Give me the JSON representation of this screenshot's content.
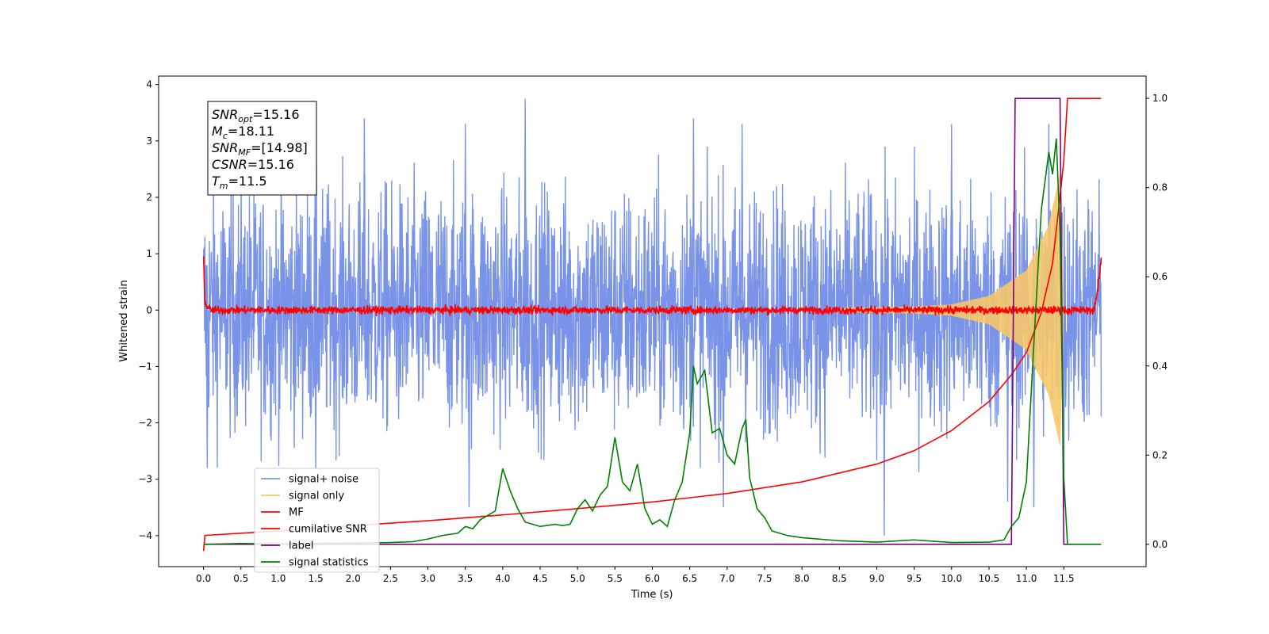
{
  "chart_data": {
    "type": "line",
    "xlabel": "Time (s)",
    "ylabel": "Whitened strain",
    "ylabel_right": "",
    "xlim": [
      -0.6,
      12.6
    ],
    "ylim": [
      -4.55,
      4.15
    ],
    "ylim_right": [
      -0.05,
      1.05
    ],
    "xticks": [
      0.0,
      0.5,
      1.0,
      1.5,
      2.0,
      2.5,
      3.0,
      3.5,
      4.0,
      4.5,
      5.0,
      5.5,
      6.0,
      6.5,
      7.0,
      7.5,
      8.0,
      8.5,
      9.0,
      9.5,
      10.0,
      10.5,
      11.0,
      11.5
    ],
    "xtick_labels": [
      "0.0",
      "0.5",
      "1.0",
      "1.5",
      "2.0",
      "2.5",
      "3.0",
      "3.5",
      "4.0",
      "4.5",
      "5.0",
      "5.5",
      "6.0",
      "6.5",
      "7.0",
      "7.5",
      "8.0",
      "8.5",
      "9.0",
      "9.5",
      "10.0",
      "10.5",
      "11.0",
      "11.5"
    ],
    "yticks": [
      -4,
      -3,
      -2,
      -1,
      0,
      1,
      2,
      3,
      4
    ],
    "ytick_labels": [
      "−4",
      "−3",
      "−2",
      "−1",
      "0",
      "1",
      "2",
      "3",
      "4"
    ],
    "yticks_right": [
      0.0,
      0.2,
      0.4,
      0.6,
      0.8,
      1.0
    ],
    "ytick_labels_right": [
      "0.0",
      "0.2",
      "0.4",
      "0.6",
      "0.8",
      "1.0"
    ],
    "grid": false,
    "legend_position": "lower-left",
    "annotation": {
      "lines": [
        {
          "main": "SNR",
          "sub": "opt",
          "rest": "=15.16"
        },
        {
          "main": "M",
          "sub": "c",
          "rest": "=18.11"
        },
        {
          "main": "SNR",
          "sub": "MF",
          "rest": "=[14.98]"
        },
        {
          "main": "CSNR",
          "sub": "",
          "rest": "=15.16"
        },
        {
          "main": "T",
          "sub": "m",
          "rest": "=11.5"
        }
      ]
    },
    "series": [
      {
        "name": "signal+ noise",
        "color": "#7893e8",
        "axis": "left",
        "kind": "noise-band",
        "x_range": [
          0.0,
          12.0
        ],
        "typical_min": -2.2,
        "typical_max": 2.2,
        "extremes": [
          {
            "x": 0.05,
            "y": -2.8
          },
          {
            "x": 1.5,
            "y": -2.8
          },
          {
            "x": 2.15,
            "y": 3.4
          },
          {
            "x": 3.5,
            "y": 3.3
          },
          {
            "x": 3.55,
            "y": -3.5
          },
          {
            "x": 4.3,
            "y": 3.75
          },
          {
            "x": 6.55,
            "y": 3.4
          },
          {
            "x": 6.95,
            "y": -3.5
          },
          {
            "x": 7.2,
            "y": 3.3
          },
          {
            "x": 9.1,
            "y": -4.0
          },
          {
            "x": 10.0,
            "y": 3.3
          },
          {
            "x": 10.75,
            "y": -3.4
          },
          {
            "x": 11.1,
            "y": -3.5
          },
          {
            "x": 11.3,
            "y": 3.3
          },
          {
            "x": 11.5,
            "y": -3.5
          }
        ]
      },
      {
        "name": "signal only",
        "color": "#f5c86a",
        "axis": "left",
        "kind": "chirp",
        "amplitude_points": [
          [
            0.0,
            0.0
          ],
          [
            8.0,
            0.03
          ],
          [
            9.5,
            0.06
          ],
          [
            10.0,
            0.1
          ],
          [
            10.5,
            0.25
          ],
          [
            11.0,
            0.7
          ],
          [
            11.3,
            1.5
          ],
          [
            11.45,
            2.4
          ],
          [
            11.5,
            0.0
          ],
          [
            12.0,
            0.0
          ]
        ]
      },
      {
        "name": "MF",
        "color": "#ff0000",
        "axis": "left",
        "kind": "noise-band",
        "points": [
          [
            0.0,
            1.0
          ],
          [
            0.02,
            0.1
          ],
          [
            0.1,
            0.0
          ],
          [
            6.0,
            0.0
          ],
          [
            11.9,
            0.0
          ],
          [
            11.95,
            0.3
          ],
          [
            12.0,
            0.9
          ]
        ],
        "jitter": 0.1
      },
      {
        "name": "cumilative SNR",
        "color": "#ff0000",
        "axis": "right",
        "points": [
          [
            0.0,
            -0.015
          ],
          [
            0.02,
            0.02
          ],
          [
            1.0,
            0.03
          ],
          [
            2.0,
            0.042
          ],
          [
            3.0,
            0.053
          ],
          [
            4.0,
            0.066
          ],
          [
            5.0,
            0.08
          ],
          [
            6.0,
            0.095
          ],
          [
            7.0,
            0.114
          ],
          [
            8.0,
            0.14
          ],
          [
            9.0,
            0.18
          ],
          [
            9.5,
            0.21
          ],
          [
            10.0,
            0.255
          ],
          [
            10.5,
            0.32
          ],
          [
            10.8,
            0.38
          ],
          [
            11.0,
            0.43
          ],
          [
            11.2,
            0.52
          ],
          [
            11.35,
            0.63
          ],
          [
            11.45,
            0.78
          ],
          [
            11.5,
            0.86
          ],
          [
            11.55,
            1.0
          ],
          [
            12.0,
            1.0
          ]
        ]
      },
      {
        "name": "label",
        "color": "#800080",
        "axis": "right",
        "points": [
          [
            0.0,
            0.0
          ],
          [
            10.8,
            0.0
          ],
          [
            10.85,
            1.0
          ],
          [
            11.45,
            1.0
          ],
          [
            11.5,
            0.0
          ],
          [
            11.6,
            0.0
          ]
        ]
      },
      {
        "name": "signal statistics",
        "color": "#008000",
        "axis": "right",
        "points": [
          [
            0.0,
            0.0
          ],
          [
            0.5,
            0.002
          ],
          [
            1.0,
            0.001
          ],
          [
            1.5,
            0.002
          ],
          [
            2.0,
            0.003
          ],
          [
            2.5,
            0.004
          ],
          [
            2.8,
            0.006
          ],
          [
            3.0,
            0.012
          ],
          [
            3.2,
            0.02
          ],
          [
            3.4,
            0.025
          ],
          [
            3.5,
            0.04
          ],
          [
            3.6,
            0.035
          ],
          [
            3.7,
            0.055
          ],
          [
            3.8,
            0.065
          ],
          [
            3.9,
            0.075
          ],
          [
            4.0,
            0.17
          ],
          [
            4.1,
            0.12
          ],
          [
            4.2,
            0.08
          ],
          [
            4.3,
            0.05
          ],
          [
            4.4,
            0.045
          ],
          [
            4.5,
            0.04
          ],
          [
            4.7,
            0.045
          ],
          [
            4.8,
            0.042
          ],
          [
            4.9,
            0.045
          ],
          [
            5.0,
            0.08
          ],
          [
            5.1,
            0.1
          ],
          [
            5.2,
            0.075
          ],
          [
            5.3,
            0.11
          ],
          [
            5.4,
            0.13
          ],
          [
            5.5,
            0.24
          ],
          [
            5.6,
            0.14
          ],
          [
            5.7,
            0.12
          ],
          [
            5.8,
            0.18
          ],
          [
            5.9,
            0.08
          ],
          [
            6.0,
            0.045
          ],
          [
            6.1,
            0.055
          ],
          [
            6.2,
            0.04
          ],
          [
            6.3,
            0.1
          ],
          [
            6.4,
            0.14
          ],
          [
            6.5,
            0.25
          ],
          [
            6.55,
            0.4
          ],
          [
            6.6,
            0.36
          ],
          [
            6.7,
            0.39
          ],
          [
            6.8,
            0.25
          ],
          [
            6.9,
            0.26
          ],
          [
            7.0,
            0.2
          ],
          [
            7.1,
            0.18
          ],
          [
            7.2,
            0.26
          ],
          [
            7.25,
            0.28
          ],
          [
            7.3,
            0.15
          ],
          [
            7.4,
            0.08
          ],
          [
            7.5,
            0.06
          ],
          [
            7.6,
            0.03
          ],
          [
            7.8,
            0.02
          ],
          [
            8.0,
            0.015
          ],
          [
            8.5,
            0.008
          ],
          [
            9.0,
            0.005
          ],
          [
            9.5,
            0.01
          ],
          [
            10.0,
            0.004
          ],
          [
            10.5,
            0.005
          ],
          [
            10.7,
            0.01
          ],
          [
            10.8,
            0.04
          ],
          [
            10.9,
            0.06
          ],
          [
            11.0,
            0.14
          ],
          [
            11.1,
            0.45
          ],
          [
            11.2,
            0.75
          ],
          [
            11.3,
            0.88
          ],
          [
            11.35,
            0.83
          ],
          [
            11.4,
            0.91
          ],
          [
            11.45,
            0.7
          ],
          [
            11.5,
            0.15
          ],
          [
            11.55,
            0.0
          ],
          [
            12.0,
            0.0
          ]
        ]
      }
    ]
  }
}
